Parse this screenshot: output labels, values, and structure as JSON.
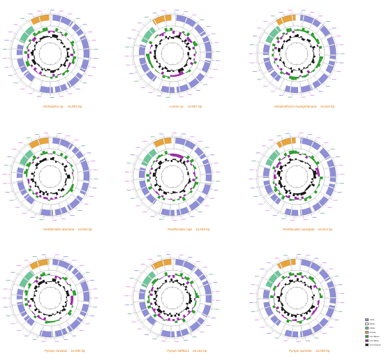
{
  "colors": {
    "cds": "#8f8fd8",
    "rrna": "#6cc69a",
    "trna": "#ffffff",
    "control_region": "#e8a43a",
    "gc_skew_pos": "#2f9e2f",
    "gc_skew_neg": "#9a2aa6",
    "gc_content": "#111111",
    "label_cds": "#5a4fcf",
    "label_trna": "#d14ad1",
    "label_rrna": "#2e8b57",
    "label_cr": "#e07a10"
  },
  "maps": [
    {
      "species": "Dichoptera sp.",
      "length": "15,803 bp"
    },
    {
      "species": "Limois sp.",
      "length": "15,957 bp"
    },
    {
      "species": "Nicolicathrous huangshanana",
      "length": "16,510 bp"
    },
    {
      "species": "Penthicodes atomaria",
      "length": "16,063 bp"
    },
    {
      "species": "Penthicodes caja",
      "length": "16,040 bp"
    },
    {
      "species": "Penthicodes variegata",
      "length": "15,814 bp"
    },
    {
      "species": "Pyrops clavatus",
      "length": "16,094 bp"
    },
    {
      "species": "Pyrops lathburii",
      "length": "16,104 bp"
    },
    {
      "species": "Pyrops spinolae",
      "length": "16,028 bp"
    }
  ],
  "legend": [
    {
      "label": "CDS",
      "color_key": "cds"
    },
    {
      "label": "tRNA",
      "color_key": "trna"
    },
    {
      "label": "rRNA",
      "color_key": "rrna"
    },
    {
      "label": "D-loop",
      "color_key": "control_region"
    },
    {
      "label": "GC Skew+",
      "color_key": "gc_skew_pos"
    },
    {
      "label": "GC Skew-",
      "color_key": "gc_skew_neg"
    },
    {
      "label": "GC Content",
      "color_key": "gc_content"
    }
  ]
}
